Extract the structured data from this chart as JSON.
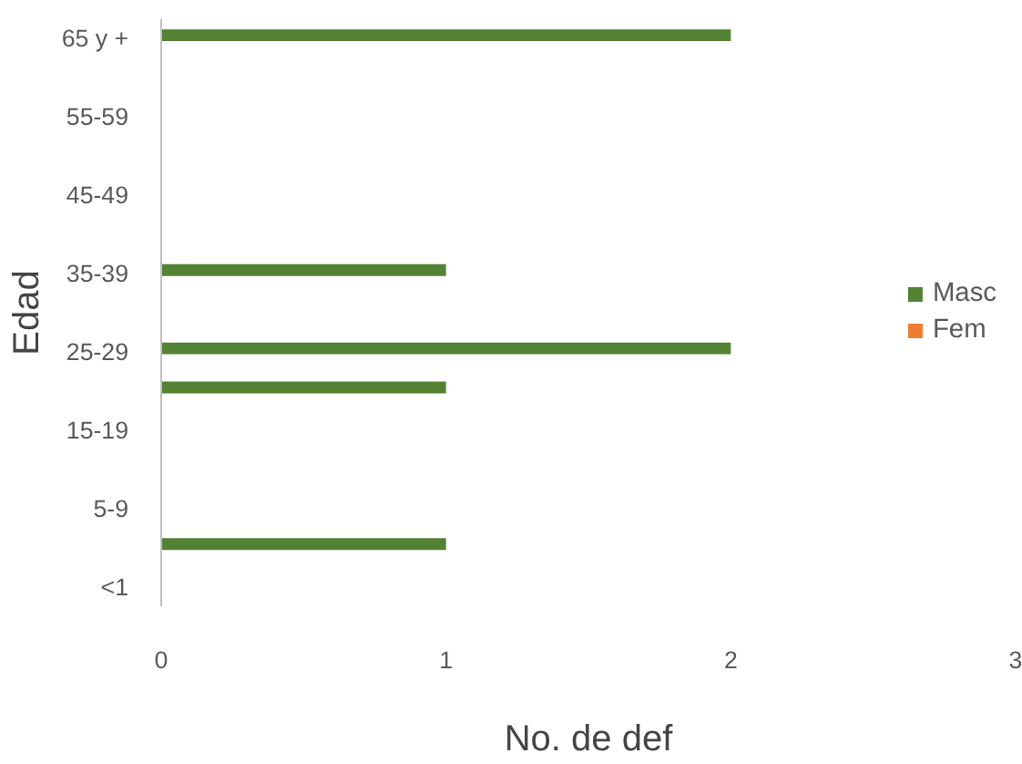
{
  "chart_data": {
    "type": "bar",
    "orientation": "horizontal",
    "categories": [
      "65 y +",
      null,
      "55-59",
      null,
      "45-49",
      null,
      "35-39",
      null,
      "25-29",
      null,
      "15-19",
      null,
      "5-9",
      null,
      "<1"
    ],
    "series": [
      {
        "name": "Masc",
        "color": "#548235",
        "values": [
          2,
          0,
          0,
          0,
          0,
          0,
          1,
          0,
          2,
          1,
          0,
          0,
          0,
          1,
          0
        ]
      },
      {
        "name": "Fem",
        "color": "#ed7d31",
        "values": [
          0,
          0,
          0,
          0,
          0,
          0,
          0,
          0,
          0,
          0,
          0,
          0,
          0,
          0,
          0
        ]
      }
    ],
    "xlim": [
      0,
      3
    ],
    "xticks": [
      0,
      1,
      2,
      3
    ],
    "xlabel": "No. de def",
    "ylabel": "Edad",
    "legend": "right",
    "grid": false
  }
}
